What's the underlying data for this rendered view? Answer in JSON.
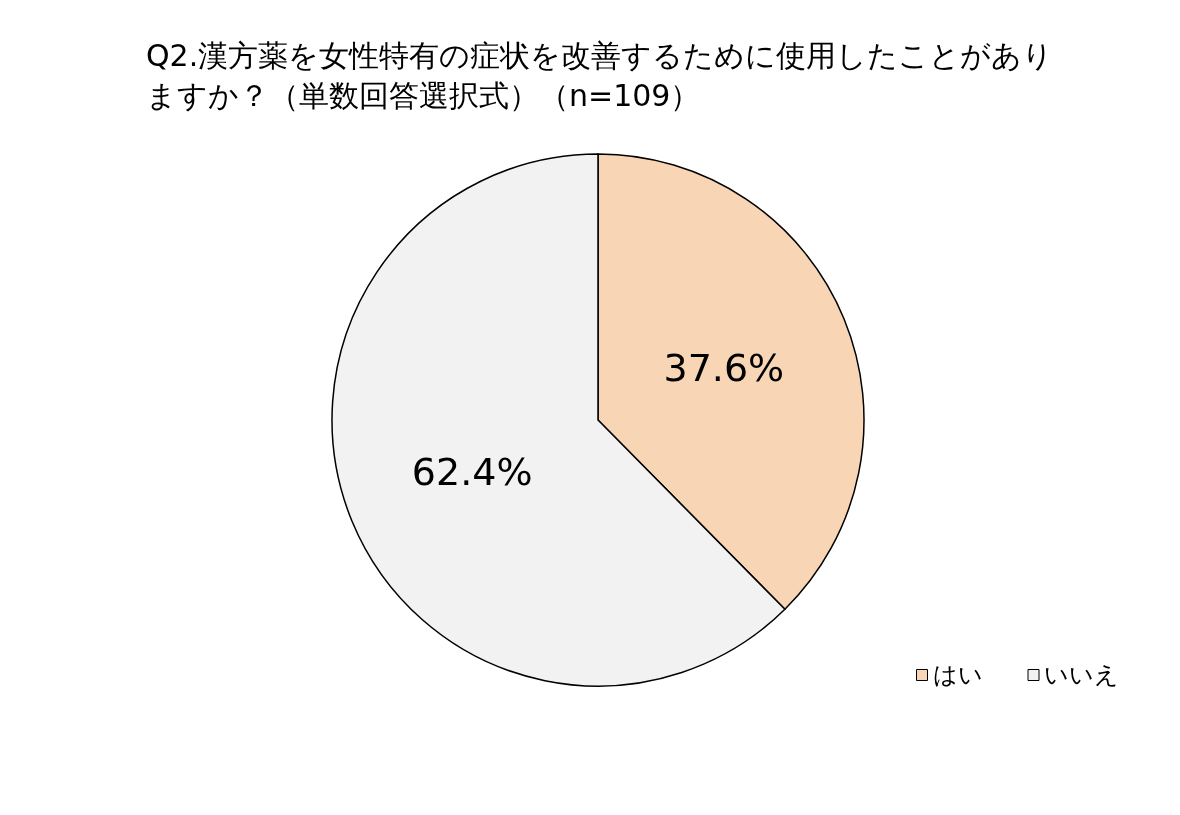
{
  "chart_data": {
    "type": "pie",
    "title": "Q2.漢方薬を女性特有の症状を改善するために使用したことがありますか？（単数回答選択式）（n=109）",
    "categories": [
      "はい",
      "いいえ"
    ],
    "values": [
      37.6,
      62.4
    ],
    "colors": [
      "#f8d5b5",
      "#f2f2f2"
    ],
    "value_labels": [
      "37.6%",
      "62.4%"
    ],
    "legend": "bottom right"
  }
}
